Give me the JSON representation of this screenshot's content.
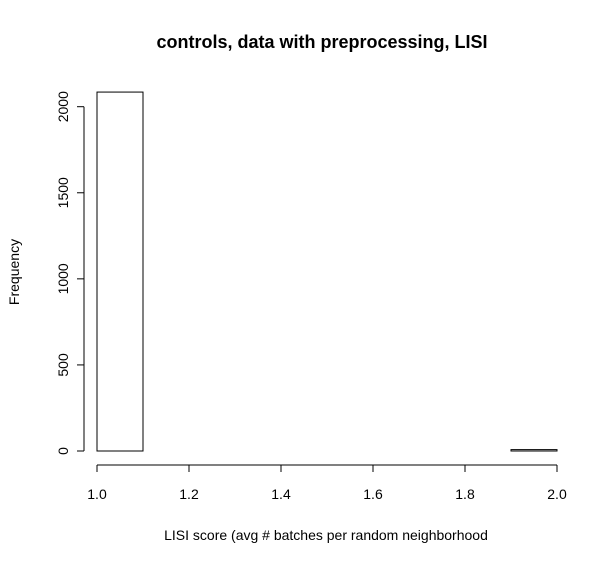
{
  "chart_data": {
    "type": "bar",
    "title": "controls, data with preprocessing, LISI",
    "xlabel": "LISI score (avg # batches per random neighborhood",
    "ylabel": "Frequency",
    "xlim": [
      1.0,
      2.0
    ],
    "ylim": [
      0,
      2085
    ],
    "x_ticks": [
      "1.0",
      "1.2",
      "1.4",
      "1.6",
      "1.8",
      "2.0"
    ],
    "y_ticks": [
      "0",
      "500",
      "1000",
      "1500",
      "2000"
    ],
    "bins": [
      {
        "start": 1.0,
        "end": 1.1,
        "count": 2085
      },
      {
        "start": 1.1,
        "end": 1.2,
        "count": 0
      },
      {
        "start": 1.2,
        "end": 1.3,
        "count": 0
      },
      {
        "start": 1.3,
        "end": 1.4,
        "count": 0
      },
      {
        "start": 1.4,
        "end": 1.5,
        "count": 0
      },
      {
        "start": 1.5,
        "end": 1.6,
        "count": 0
      },
      {
        "start": 1.6,
        "end": 1.7,
        "count": 0
      },
      {
        "start": 1.7,
        "end": 1.8,
        "count": 0
      },
      {
        "start": 1.8,
        "end": 1.9,
        "count": 0
      },
      {
        "start": 1.9,
        "end": 2.0,
        "count": 8
      }
    ],
    "grid": false,
    "legend": "none"
  }
}
